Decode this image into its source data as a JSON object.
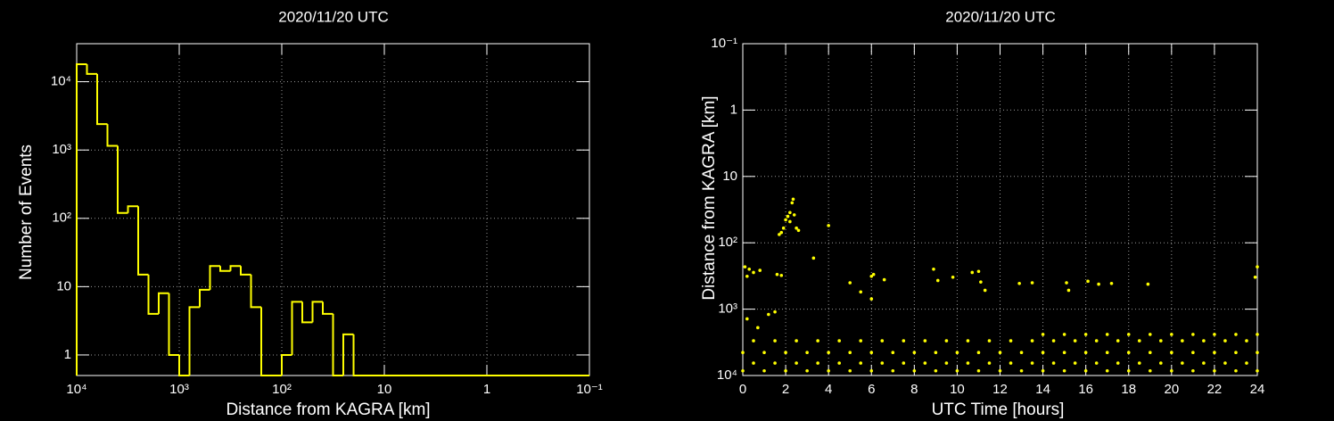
{
  "chart_data": [
    {
      "type": "histogram",
      "title": "2020/11/20 UTC",
      "xlabel": "Distance from KAGRA [km]",
      "ylabel": "Number of Events",
      "color": "#ffff00",
      "xscale": "log",
      "yscale": "log",
      "grid": true,
      "bins": [
        10000,
        7943,
        6310,
        5012,
        3981,
        3162,
        2512,
        1995,
        1585,
        1259,
        1000,
        794.3,
        631.0,
        501.2,
        398.1,
        316.2,
        251.2,
        199.5,
        158.5,
        125.9,
        100,
        79.43,
        63.1,
        50.12,
        39.81,
        31.62,
        25.12,
        19.95,
        15.85,
        12.59,
        10,
        7.943,
        6.31,
        5.012,
        3.981,
        3.162,
        2.512,
        1.995,
        1.585,
        1.259,
        1,
        0.7943,
        0.631,
        0.5012,
        0.3981,
        0.3162,
        0.2512,
        0.1995,
        0.1585,
        0.1259,
        0.1
      ],
      "counts": [
        18000,
        13000,
        2400,
        1150,
        120,
        150,
        15,
        4,
        8,
        1,
        0,
        5,
        9,
        20,
        17,
        20,
        15,
        5,
        0,
        0,
        1,
        6,
        3,
        6,
        4,
        0,
        2,
        0,
        0,
        0,
        0,
        0,
        0,
        0,
        0,
        0,
        0,
        0,
        0,
        0,
        0,
        0,
        0,
        0,
        0,
        0,
        0,
        0,
        0,
        0
      ],
      "xlim": [
        10000,
        0.1
      ],
      "xticks": [
        {
          "value": 10000,
          "label": "10⁴"
        },
        {
          "value": 1000,
          "label": "10³"
        },
        {
          "value": 100,
          "label": "10²"
        },
        10,
        1,
        {
          "value": 0.1,
          "label": "10⁻¹"
        }
      ],
      "ylim": [
        0.5,
        36000
      ],
      "yticks": [
        1,
        10,
        {
          "value": 100,
          "label": "10²"
        },
        {
          "value": 1000,
          "label": "10³"
        },
        {
          "value": 10000,
          "label": "10⁴"
        }
      ]
    },
    {
      "type": "scatter",
      "title": "2020/11/20 UTC",
      "xlabel": "UTC Time [hours]",
      "ylabel": "Distance from KAGRA [km]",
      "color": "#ffff00",
      "yscale": "log",
      "grid": true,
      "x": [
        0,
        1,
        2,
        3,
        4,
        5,
        6,
        7,
        8,
        9,
        10,
        11,
        12,
        13,
        14,
        15,
        16,
        17,
        18,
        19,
        20,
        21,
        22,
        23,
        24,
        0.5,
        1.5,
        2.5,
        3.5,
        4.5,
        5.5,
        6.5,
        7.5,
        8.5,
        9.5,
        10.5,
        11.5,
        12.5,
        13.5,
        14.5,
        15.5,
        16.5,
        17.5,
        18.5,
        19.5,
        20.5,
        21.5,
        22.5,
        23.5,
        0,
        1,
        2,
        3,
        4,
        5,
        6,
        7,
        8,
        9,
        10,
        11,
        12,
        13,
        14,
        15,
        16,
        17,
        18,
        19,
        20,
        21,
        22,
        23,
        24,
        0.5,
        1.5,
        2.5,
        3.5,
        4.5,
        5.5,
        6.5,
        7.5,
        8.5,
        9.5,
        10.5,
        11.5,
        12.5,
        13.5,
        14.5,
        15.5,
        16.5,
        17.5,
        18.5,
        19.5,
        20.5,
        21.5,
        22.5,
        23.5,
        14,
        15,
        16,
        17,
        18,
        19,
        20,
        21,
        22,
        23,
        24,
        1.9,
        2.0,
        2.1,
        2.2,
        2.3,
        2.35,
        1.8,
        2.5,
        2.6,
        1.7,
        2.4,
        2.2,
        4,
        3.3,
        0.1,
        0.3,
        0.5,
        0.2,
        0.8,
        1.6,
        1.8,
        6,
        6.1,
        6.6,
        5,
        8.9,
        9.8,
        10.7,
        11,
        11.1,
        11.3,
        9.1,
        12.9,
        13.5,
        15.1,
        15.2,
        16.1,
        16.6,
        17.2,
        18.9,
        24,
        23.9,
        0.2,
        1.2,
        1.5,
        0.7,
        6,
        5.5
      ],
      "y": [
        4500,
        4500,
        4500,
        4500,
        4500,
        4500,
        4500,
        4500,
        4500,
        4500,
        4500,
        4500,
        4500,
        4500,
        4500,
        4500,
        4500,
        4500,
        4500,
        4500,
        4500,
        4500,
        4500,
        4500,
        4500,
        6500,
        6500,
        6500,
        6500,
        6500,
        6500,
        6500,
        6500,
        6500,
        6500,
        6500,
        6500,
        6500,
        6500,
        6500,
        6500,
        6500,
        6500,
        6500,
        6500,
        6500,
        6500,
        6500,
        6500,
        8500,
        8500,
        8500,
        8500,
        8500,
        8500,
        8500,
        8500,
        8500,
        8500,
        8500,
        8500,
        8500,
        8500,
        8500,
        8500,
        8500,
        8500,
        8500,
        8500,
        8500,
        8500,
        8500,
        8500,
        8500,
        3000,
        3000,
        3000,
        3000,
        3000,
        3000,
        3000,
        3000,
        3000,
        3000,
        3000,
        3000,
        3000,
        3000,
        3000,
        3000,
        3000,
        3000,
        3000,
        3000,
        3000,
        3000,
        3000,
        3000,
        2400,
        2400,
        2400,
        2400,
        2400,
        2400,
        2400,
        2400,
        2400,
        2400,
        2400,
        60,
        45,
        40,
        35,
        25,
        22,
        70,
        60,
        65,
        75,
        38,
        48,
        55,
        170,
        230,
        250,
        280,
        320,
        260,
        300,
        310,
        320,
        300,
        360,
        400,
        250,
        330,
        280,
        270,
        390,
        520,
        370,
        410,
        400,
        400,
        520,
        380,
        420,
        410,
        420,
        230,
        330,
        1400,
        1200,
        1100,
        1900,
        700,
        550
      ],
      "xlim": [
        0,
        24
      ],
      "xticks": [
        0,
        2,
        4,
        6,
        8,
        10,
        12,
        14,
        16,
        18,
        20,
        22,
        24
      ],
      "ylim": [
        10000,
        0.1
      ],
      "yticks": [
        {
          "value": 0.1,
          "label": "10⁻¹"
        },
        1,
        10,
        {
          "value": 100,
          "label": "10²"
        },
        {
          "value": 1000,
          "label": "10³"
        },
        {
          "value": 10000,
          "label": "10⁴"
        }
      ]
    }
  ]
}
